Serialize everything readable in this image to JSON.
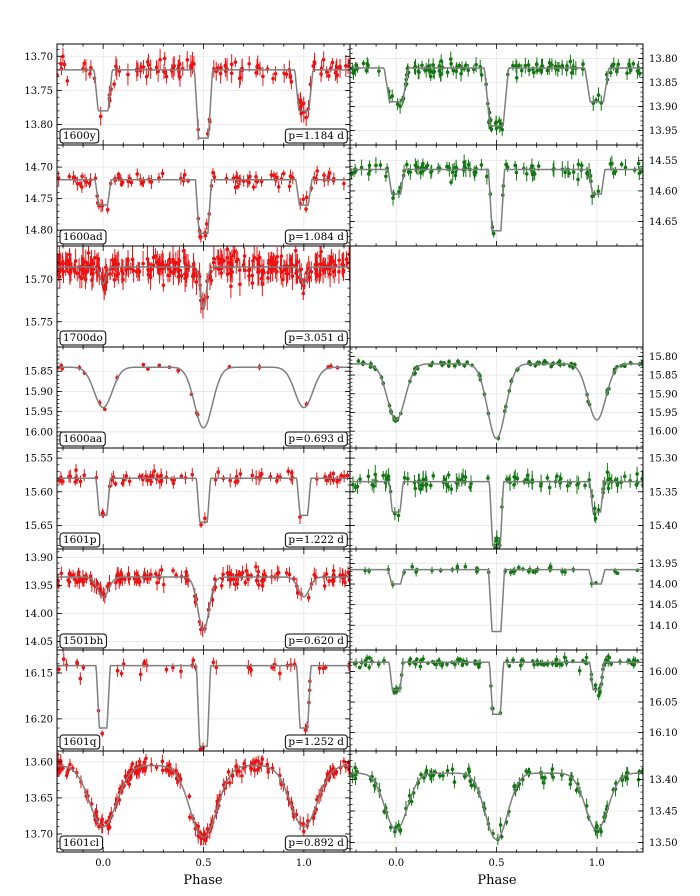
{
  "figure": {
    "xlabel_left": "Phase",
    "xlabel_right": "Phase",
    "colors": {
      "left_points": "#ee1111",
      "right_points": "#117711",
      "model": "#7f7f7f",
      "grid": "#e6e6e6"
    },
    "x_ticks": [
      "0.0",
      "0.5",
      "1.0"
    ]
  },
  "chart_data": [
    {
      "type": "scatter",
      "panel": "left",
      "row": 0,
      "name_tag": "1600y",
      "period_tag": "p=1.184 d",
      "xlim": [
        -0.23,
        1.23
      ],
      "ylim": [
        13.83,
        13.682
      ],
      "invert_y": true,
      "yticks": [
        "13.70",
        "13.75",
        "13.80"
      ],
      "ytick_values": [
        13.7,
        13.75,
        13.8
      ],
      "model": {
        "base": 13.72,
        "d1": 0.1,
        "d2": 0.06,
        "w": 0.045,
        "shape": "box"
      },
      "noise": 0.012,
      "npoints": 120
    },
    {
      "type": "scatter",
      "panel": "right",
      "row": 0,
      "xlim": [
        -0.23,
        1.23
      ],
      "ylim": [
        13.98,
        13.77
      ],
      "invert_y": true,
      "yticks": [
        "13.80",
        "13.85",
        "13.90",
        "13.95"
      ],
      "ytick_values": [
        13.8,
        13.85,
        13.9,
        13.95
      ],
      "model": {
        "base": 13.82,
        "d1": 0.12,
        "d2": 0.07,
        "w": 0.06,
        "shape": "box"
      },
      "noise": 0.012,
      "npoints": 140
    },
    {
      "type": "scatter",
      "panel": "left",
      "row": 1,
      "name_tag": "1600ad",
      "period_tag": "p=1.084 d",
      "xlim": [
        -0.23,
        1.23
      ],
      "ylim": [
        14.825,
        14.665
      ],
      "invert_y": true,
      "yticks": [
        "14.70",
        "14.75",
        "14.80"
      ],
      "ytick_values": [
        14.7,
        14.75,
        14.8
      ],
      "model": {
        "base": 14.72,
        "d1": 0.085,
        "d2": 0.04,
        "w": 0.04,
        "shape": "box"
      },
      "noise": 0.008,
      "npoints": 100
    },
    {
      "type": "scatter",
      "panel": "right",
      "row": 1,
      "xlim": [
        -0.23,
        1.23
      ],
      "ylim": [
        14.69,
        14.525
      ],
      "invert_y": true,
      "yticks": [
        "14.55",
        "14.60",
        "14.65"
      ],
      "ytick_values": [
        14.55,
        14.6,
        14.65
      ],
      "model": {
        "base": 14.565,
        "d1": 0.1,
        "d2": 0.04,
        "w": 0.04,
        "shape": "box"
      },
      "noise": 0.01,
      "npoints": 110
    },
    {
      "type": "scatter",
      "panel": "left",
      "row": 2,
      "name_tag": "1700do",
      "period_tag": "p=3.051 d",
      "xlim": [
        -0.23,
        1.23
      ],
      "ylim": [
        15.78,
        15.66
      ],
      "invert_y": true,
      "yticks": [
        "15.70",
        "15.75"
      ],
      "ytick_values": [
        15.7,
        15.75
      ],
      "model": {
        "base": 15.685,
        "d1": 0.05,
        "d2": 0.02,
        "w": 0.025,
        "shape": "v"
      },
      "noise": 0.012,
      "npoints": 340
    },
    {
      "type": "scatter",
      "panel": "left",
      "row": 3,
      "name_tag": "1600aa",
      "period_tag": "p=0.693 d",
      "xlim": [
        -0.23,
        1.23
      ],
      "ylim": [
        16.04,
        15.79
      ],
      "invert_y": true,
      "yticks": [
        "15.85",
        "15.90",
        "15.95",
        "16.00"
      ],
      "ytick_values": [
        15.85,
        15.9,
        15.95,
        16.0
      ],
      "model": {
        "base": 15.84,
        "d1": 0.15,
        "d2": 0.1,
        "w": 0.08,
        "shape": "v"
      },
      "noise": 0.006,
      "npoints": 22
    },
    {
      "type": "scatter",
      "panel": "right",
      "row": 3,
      "xlim": [
        -0.23,
        1.23
      ],
      "ylim": [
        16.045,
        15.775
      ],
      "invert_y": true,
      "yticks": [
        "15.80",
        "15.85",
        "15.90",
        "15.95",
        "16.00"
      ],
      "ytick_values": [
        15.8,
        15.85,
        15.9,
        15.95,
        16.0
      ],
      "model": {
        "base": 15.82,
        "d1": 0.2,
        "d2": 0.15,
        "w": 0.08,
        "shape": "v"
      },
      "noise": 0.006,
      "npoints": 110
    },
    {
      "type": "scatter",
      "panel": "left",
      "row": 4,
      "name_tag": "1601p",
      "period_tag": "p=1.222 d",
      "xlim": [
        -0.23,
        1.23
      ],
      "ylim": [
        15.685,
        15.535
      ],
      "invert_y": true,
      "yticks": [
        "15.55",
        "15.60",
        "15.65"
      ],
      "ytick_values": [
        15.55,
        15.6,
        15.65
      ],
      "model": {
        "base": 15.58,
        "d1": 0.065,
        "d2": 0.055,
        "w": 0.035,
        "shape": "box"
      },
      "noise": 0.008,
      "npoints": 85
    },
    {
      "type": "scatter",
      "panel": "right",
      "row": 4,
      "xlim": [
        -0.23,
        1.23
      ],
      "ylim": [
        15.435,
        15.285
      ],
      "invert_y": true,
      "yticks": [
        "15.30",
        "15.35",
        "15.40"
      ],
      "ytick_values": [
        15.3,
        15.35,
        15.4
      ],
      "model": {
        "base": 15.335,
        "d1": 0.095,
        "d2": 0.045,
        "w": 0.035,
        "shape": "box"
      },
      "noise": 0.01,
      "npoints": 110
    },
    {
      "type": "scatter",
      "panel": "left",
      "row": 5,
      "name_tag": "1501bh",
      "period_tag": "p=0.620 d",
      "xlim": [
        -0.23,
        1.23
      ],
      "ylim": [
        14.065,
        13.885
      ],
      "invert_y": true,
      "yticks": [
        "13.90",
        "13.95",
        "14.00",
        "14.05"
      ],
      "ytick_values": [
        13.9,
        13.95,
        14.0,
        14.05
      ],
      "model": {
        "base": 13.935,
        "d1": 0.095,
        "d2": 0.035,
        "w": 0.05,
        "shape": "v"
      },
      "noise": 0.011,
      "npoints": 160
    },
    {
      "type": "scatter",
      "panel": "right",
      "row": 5,
      "xlim": [
        -0.23,
        1.23
      ],
      "ylim": [
        14.16,
        13.915
      ],
      "invert_y": true,
      "yticks": [
        "13.95",
        "14.00",
        "14.05",
        "14.10"
      ],
      "ytick_values": [
        13.95,
        14.0,
        14.05,
        14.1
      ],
      "model": {
        "base": 13.965,
        "d1": 0.15,
        "d2": 0.035,
        "w": 0.04,
        "shape": "box"
      },
      "noise": 0.008,
      "npoints": 40
    },
    {
      "type": "scatter",
      "panel": "left",
      "row": 6,
      "name_tag": "1601q",
      "period_tag": "p=1.252 d",
      "xlim": [
        -0.23,
        1.23
      ],
      "ylim": [
        16.235,
        16.125
      ],
      "invert_y": true,
      "yticks": [
        "16.15",
        "16.20"
      ],
      "ytick_values": [
        16.15,
        16.2
      ],
      "model": {
        "base": 16.142,
        "d1": 0.088,
        "d2": 0.068,
        "w": 0.035,
        "shape": "box"
      },
      "noise": 0.006,
      "npoints": 45
    },
    {
      "type": "scatter",
      "panel": "right",
      "row": 6,
      "xlim": [
        -0.23,
        1.23
      ],
      "ylim": [
        16.13,
        15.965
      ],
      "invert_y": true,
      "yticks": [
        "16.00",
        "16.05",
        "16.10"
      ],
      "ytick_values": [
        16.0,
        16.05,
        16.1
      ],
      "model": {
        "base": 15.985,
        "d1": 0.085,
        "d2": 0.045,
        "w": 0.035,
        "shape": "box"
      },
      "noise": 0.006,
      "npoints": 120
    },
    {
      "type": "scatter",
      "panel": "left",
      "row": 7,
      "name_tag": "1601cl",
      "period_tag": "p=0.892 d",
      "xlim": [
        -0.23,
        1.23
      ],
      "ylim": [
        13.725,
        13.585
      ],
      "invert_y": true,
      "yticks": [
        "13.60",
        "13.65",
        "13.70"
      ],
      "ytick_values": [
        13.6,
        13.65,
        13.7
      ],
      "model": {
        "base": 13.605,
        "d1": 0.1,
        "d2": 0.085,
        "w": 0.12,
        "shape": "v"
      },
      "noise": 0.008,
      "npoints": 220
    },
    {
      "type": "scatter",
      "panel": "right",
      "row": 7,
      "xlim": [
        -0.23,
        1.23
      ],
      "ylim": [
        13.515,
        13.355
      ],
      "invert_y": true,
      "yticks": [
        "13.40",
        "13.45",
        "13.50"
      ],
      "ytick_values": [
        13.4,
        13.45,
        13.5
      ],
      "model": {
        "base": 13.39,
        "d1": 0.105,
        "d2": 0.09,
        "w": 0.1,
        "shape": "v"
      },
      "noise": 0.009,
      "npoints": 110
    }
  ]
}
